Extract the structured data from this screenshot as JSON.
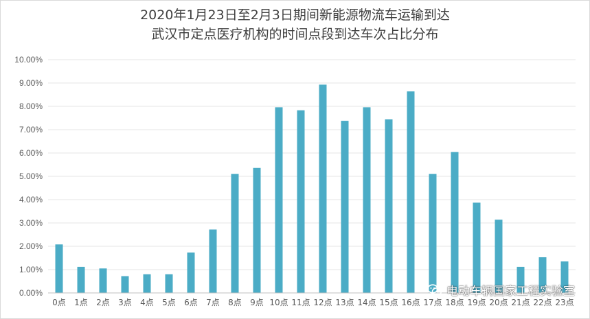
{
  "colors": {
    "bar": "#4bacc6",
    "axis": "#595959",
    "grid": "#e6e6e6",
    "title": "#404040"
  },
  "chart_data": {
    "type": "bar",
    "title_lines": [
      "2020年1月23日至2月3日期间新能源物流车运输到达",
      "武汉市定点医疗机构的时间点段到达车次占比分布"
    ],
    "categories": [
      "0点",
      "1点",
      "2点",
      "3点",
      "4点",
      "5点",
      "6点",
      "7点",
      "8点",
      "9点",
      "10点",
      "11点",
      "12点",
      "13点",
      "14点",
      "15点",
      "16点",
      "17点",
      "18点",
      "19点",
      "20点",
      "21点",
      "22点",
      "23点"
    ],
    "values": [
      2.08,
      1.12,
      1.05,
      0.72,
      0.8,
      0.8,
      1.73,
      2.72,
      5.1,
      5.36,
      7.96,
      7.83,
      8.93,
      7.38,
      7.96,
      7.44,
      8.64,
      5.1,
      6.04,
      3.87,
      3.14,
      1.12,
      1.53,
      1.35
    ],
    "y_ticks": [
      "0.00%",
      "1.00%",
      "2.00%",
      "3.00%",
      "4.00%",
      "5.00%",
      "6.00%",
      "7.00%",
      "8.00%",
      "9.00%",
      "10.00%"
    ],
    "ylim": [
      0,
      10
    ],
    "grid": true,
    "legend": "none"
  },
  "watermark": {
    "text": "电动车辆国家工程实验室",
    "icon": "wechat-icon"
  }
}
